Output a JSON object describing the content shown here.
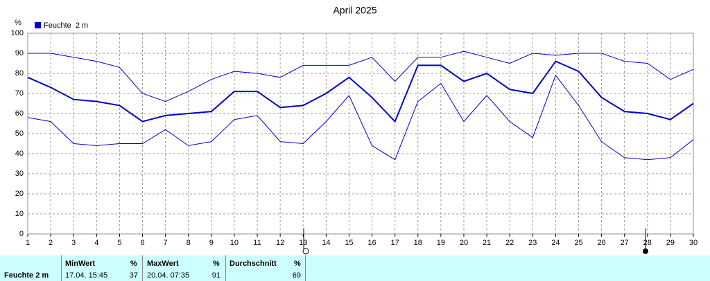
{
  "chart_data": {
    "type": "line",
    "title": "April 2025",
    "y_label": "%",
    "x": [
      1,
      2,
      3,
      4,
      5,
      6,
      7,
      8,
      9,
      10,
      11,
      12,
      13,
      14,
      15,
      16,
      17,
      18,
      19,
      20,
      21,
      22,
      23,
      24,
      25,
      26,
      27,
      28,
      29,
      30
    ],
    "xlim": [
      1,
      30
    ],
    "xticks": [
      1,
      2,
      3,
      4,
      5,
      6,
      7,
      8,
      9,
      10,
      11,
      12,
      13,
      14,
      15,
      16,
      17,
      18,
      19,
      20,
      21,
      22,
      23,
      24,
      25,
      26,
      27,
      28,
      29,
      30
    ],
    "ylim": [
      0,
      100
    ],
    "yticks": [
      0,
      10,
      20,
      30,
      40,
      50,
      60,
      70,
      80,
      90,
      100
    ],
    "grid": true,
    "series": [
      {
        "color": "#0000cc",
        "values": [
          90,
          90,
          88,
          86,
          83,
          70,
          66,
          71,
          77,
          81,
          80,
          78,
          84,
          84,
          84,
          88,
          76,
          88,
          88,
          91,
          88,
          85,
          90,
          89,
          90,
          90,
          86,
          85,
          77,
          82
        ]
      },
      {
        "name": "Feuchte  2 m",
        "color": "#0000cc",
        "values": [
          78,
          73,
          67,
          66,
          64,
          56,
          59,
          60,
          61,
          71,
          71,
          63,
          64,
          70,
          78,
          68,
          56,
          84,
          84,
          76,
          80,
          72,
          70,
          86,
          81,
          68,
          61,
          60,
          57,
          65
        ]
      },
      {
        "color": "#0000cc",
        "values": [
          58,
          56,
          45,
          44,
          45,
          45,
          52,
          44,
          46,
          57,
          59,
          46,
          45,
          56,
          69,
          44,
          37,
          66,
          75,
          56,
          69,
          56,
          48,
          79,
          64,
          46,
          38,
          37,
          38,
          47
        ]
      }
    ]
  },
  "table": {
    "headers": [
      "MinWert",
      "%",
      "MaxWert",
      "%",
      "Durchschnitt",
      "%"
    ],
    "row": {
      "label": "Feuchte  2 m",
      "min_time": "17.04.  15:45",
      "min": 37,
      "max_time": "20.04.  07:35",
      "max": 91,
      "avg": 69
    }
  }
}
